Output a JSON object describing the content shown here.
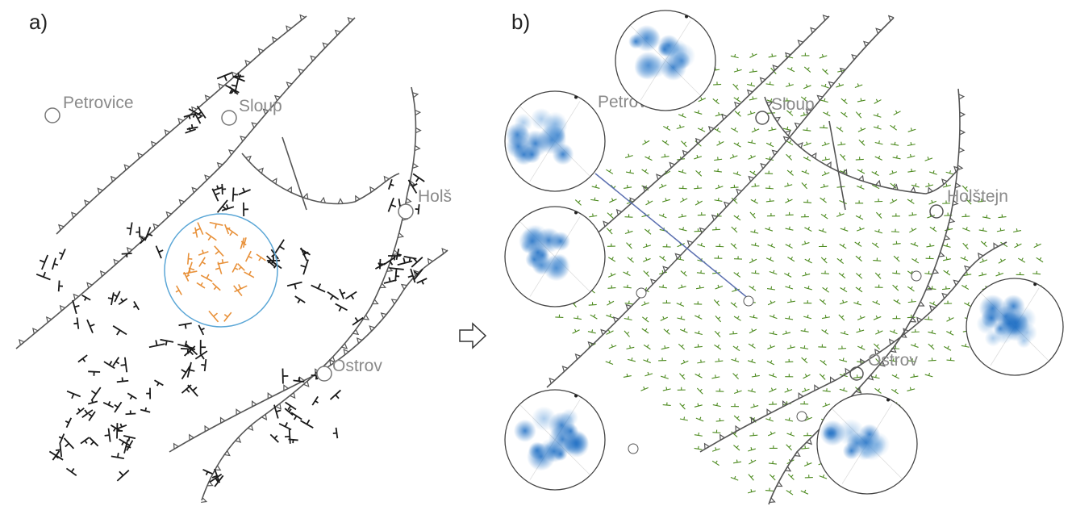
{
  "panels": [
    {
      "id": "a",
      "label": "a)",
      "places": [
        "Petrovice",
        "Sloup",
        "Holštejn",
        "Ostrov"
      ]
    },
    {
      "id": "b",
      "label": "b)",
      "places": [
        "Petrovice",
        "Sloup",
        "Holštejn",
        "Ostrov"
      ]
    }
  ],
  "colors": {
    "measurements": "#1a1a1a",
    "selected_measurements": "#e8913a",
    "interpolated_field": "#4c8a1e",
    "stereonet_density": "#1f6fc4",
    "faults": "#555555",
    "stereonet_outline": "#5aa6d6"
  },
  "arrow_icon": "hollow-right-arrow",
  "stereonet_count": 6
}
